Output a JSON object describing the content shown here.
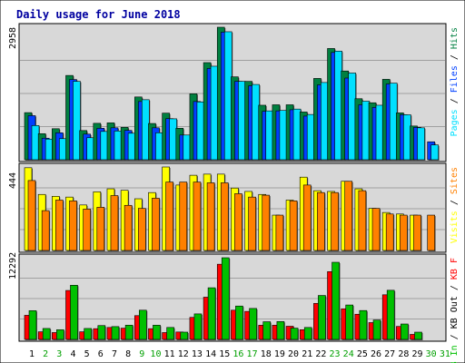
{
  "chart_data": [
    {
      "type": "bar",
      "title": "Daily usage for June 2018",
      "categories": [
        "1",
        "2",
        "3",
        "4",
        "5",
        "6",
        "7",
        "8",
        "9",
        "10",
        "11",
        "12",
        "13",
        "14",
        "15",
        "16",
        "17",
        "18",
        "19",
        "20",
        "21",
        "22",
        "23",
        "24",
        "25",
        "26",
        "27",
        "28",
        "29",
        "30",
        "31"
      ],
      "weekend_categories": [
        "2",
        "3",
        "9",
        "10",
        "16",
        "17",
        "23",
        "24",
        "30",
        "31"
      ],
      "ylim_label": "2958",
      "ylabel": [
        "Pages",
        "Files",
        "Hits"
      ],
      "series": [
        {
          "name": "Hits",
          "color": "#008040",
          "values": [
            1045,
            578,
            688,
            1870,
            648,
            808,
            818,
            718,
            1393,
            804,
            1034,
            698,
            1463,
            2155,
            2940,
            1839,
            1739,
            1209,
            1219,
            1219,
            1059,
            1804,
            2468,
            1969,
            1354,
            1264,
            1784,
            1040,
            748,
            0,
            0
          ]
        },
        {
          "name": "Files",
          "color": "#0040ff",
          "values": [
            978,
            478,
            598,
            1779,
            568,
            698,
            708,
            650,
            1292,
            708,
            912,
            548,
            1292,
            2025,
            2830,
            1739,
            1640,
            1074,
            1084,
            1109,
            968,
            1660,
            2380,
            1812,
            1219,
            1161,
            1680,
            1000,
            718,
            398,
            0
          ]
        },
        {
          "name": "Pages",
          "color": "#00e0ff",
          "values": [
            758,
            458,
            468,
            1739,
            488,
            628,
            638,
            588,
            1332,
            598,
            908,
            548,
            1283,
            2075,
            2840,
            1739,
            1670,
            1084,
            1094,
            1124,
            1004,
            1714,
            2410,
            1924,
            1299,
            1209,
            1700,
            998,
            708,
            328,
            0
          ]
        }
      ]
    },
    {
      "type": "bar",
      "ylim_label": "444",
      "ylabel": [
        "Visits",
        "Sites"
      ],
      "series": [
        {
          "name": "Visits",
          "color": "#ffff00",
          "values": [
            440,
            298,
            288,
            284,
            242,
            312,
            328,
            320,
            275,
            308,
            444,
            348,
            400,
            406,
            406,
            332,
            314,
            298,
            188,
            268,
            390,
            318,
            314,
            368,
            328,
            224,
            202,
            194,
            188,
            0,
            0
          ]
        },
        {
          "name": "Sites",
          "color": "#ff8000",
          "values": [
            372,
            212,
            268,
            264,
            220,
            230,
            292,
            240,
            224,
            278,
            364,
            364,
            364,
            360,
            360,
            302,
            284,
            294,
            188,
            264,
            348,
            308,
            308,
            368,
            318,
            224,
            194,
            188,
            188,
            188,
            0
          ]
        }
      ]
    },
    {
      "type": "bar",
      "ylim_label": "12292",
      "ylabel": [
        "KB In",
        "KB Out",
        "KB F"
      ],
      "series": [
        {
          "name": "KB F",
          "color": "#ff0000",
          "values": [
            3496,
            1105,
            995,
            7098,
            1105,
            1558,
            1735,
            1634,
            3451,
            1558,
            993,
            1074,
            3196,
            6124,
            10903,
            4238,
            4062,
            2060,
            2060,
            1910,
            1408,
            5225,
            9830,
            4440,
            3651,
            2437,
            6472,
            1883,
            728,
            0,
            0
          ]
        },
        {
          "name": "KB In",
          "color": "#00c000",
          "values": [
            4166,
            1587,
            1398,
            7854,
            1587,
            2009,
            1860,
            2064,
            4237,
            2064,
            1735,
            1053,
            3700,
            7490,
            11844,
            4840,
            4491,
            2564,
            2594,
            1637,
            1733,
            6373,
            11184,
            4990,
            4187,
            2813,
            7125,
            2236,
            1053,
            0,
            0
          ]
        }
      ]
    }
  ]
}
